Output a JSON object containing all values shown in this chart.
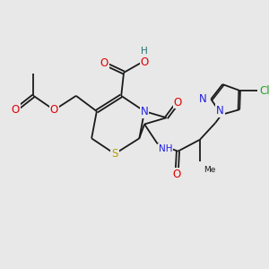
{
  "bg_color": "#e8e8e8",
  "bond_color": "#1a1a1a",
  "atom_colors": {
    "O": "#e00000",
    "N": "#2020e0",
    "S": "#b8a000",
    "Cl": "#20a020",
    "C": "#1a1a1a",
    "H": "#207070"
  },
  "lw": 1.3,
  "fs": 7.5
}
